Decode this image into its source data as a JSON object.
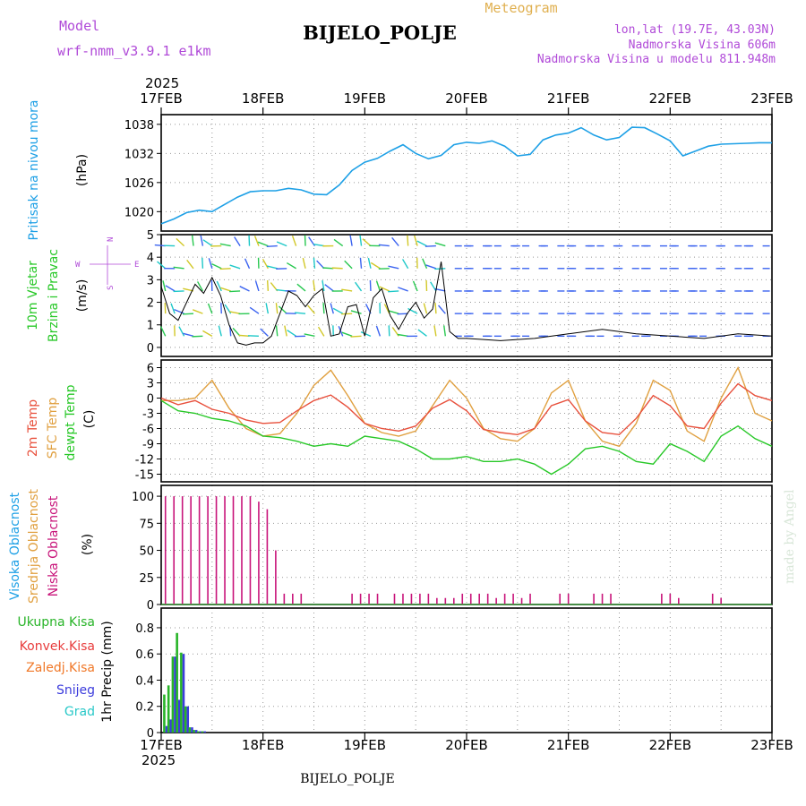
{
  "header": {
    "model_label": "Model",
    "model_name": "wrf-nmm_v3.9.1  e1km",
    "station": "BIJELO_POLJE",
    "meteogram": "Meteogram",
    "lonlat": "lon,lat (19.7E, 43.03N)",
    "elevation": "Nadmorska Visina 606m",
    "model_elevation": "Nadmorska Visina u modelu 811.948m"
  },
  "footer": {
    "station": "BIJELO_POLJE",
    "year": "2025",
    "credit": "made by Angel"
  },
  "time_axis": {
    "year": "2025",
    "ticks": [
      "17FEB",
      "18FEB",
      "19FEB",
      "20FEB",
      "21FEB",
      "22FEB",
      "23FEB"
    ],
    "range_hours": [
      0,
      144
    ]
  },
  "colors": {
    "pressure": "#1ea0e6",
    "t2m": "#e8503c",
    "tsfc": "#e0a040",
    "dewpt": "#28c828",
    "cloud_low": "#c8147a",
    "rain_total": "#28b428",
    "rain_conv": "#e83c3c",
    "freezing": "#f07828",
    "snow": "#3c3cdc",
    "grad": "#28c8c8",
    "frame": "#000000"
  },
  "chart_data": [
    {
      "type": "line",
      "ylabel": [
        "Pritisak na nivou mora",
        "(hPa)"
      ],
      "yticks": [
        1020,
        1026,
        1032,
        1038
      ],
      "ylim": [
        1016,
        1040
      ],
      "series": [
        {
          "x": [
            0,
            3,
            6,
            9,
            12,
            15,
            18,
            21,
            24,
            27,
            30,
            33,
            36,
            39,
            42,
            45,
            48,
            51,
            54,
            57,
            60,
            63,
            66,
            69,
            72,
            75,
            78,
            81,
            84,
            87,
            90,
            93,
            96,
            99,
            102,
            105,
            108,
            111,
            114,
            117,
            120,
            123,
            126,
            129,
            132,
            135,
            138,
            141,
            144
          ],
          "values": [
            1017.5,
            1018.5,
            1019.8,
            1020.3,
            1020.0,
            1021.5,
            1023.0,
            1024.1,
            1024.3,
            1024.3,
            1024.8,
            1024.5,
            1023.6,
            1023.5,
            1025.5,
            1028.5,
            1030.2,
            1031.0,
            1032.5,
            1033.8,
            1032.0,
            1030.9,
            1031.6,
            1033.8,
            1034.3,
            1034.1,
            1034.6,
            1033.5,
            1031.5,
            1031.8,
            1034.8,
            1035.8,
            1036.2,
            1037.3,
            1035.8,
            1034.8,
            1035.3,
            1037.4,
            1037.3,
            1036.0,
            1034.6,
            1031.5,
            1032.5,
            1033.5,
            1033.9,
            1034.0,
            1034.1,
            1034.2,
            1034.2
          ]
        }
      ]
    },
    {
      "type": "line",
      "ylabel": [
        "10m Vjetar",
        "Brzina i Pravac",
        "(m/s)"
      ],
      "yticks": [
        0,
        1,
        2,
        3,
        4,
        5
      ],
      "ylim": [
        -0.4,
        5
      ],
      "legend": {
        "n": "N",
        "w": "W",
        "e": "E",
        "s": "S"
      },
      "series": [
        {
          "name": "speed",
          "x": [
            0,
            2,
            4,
            6,
            8,
            10,
            12,
            14,
            16,
            18,
            20,
            22,
            24,
            26,
            28,
            30,
            32,
            34,
            36,
            38,
            40,
            42,
            44,
            46,
            48,
            50,
            52,
            54,
            56,
            58,
            60,
            62,
            64,
            66,
            68,
            70,
            72,
            80,
            88,
            96,
            104,
            112,
            120,
            128,
            136,
            144
          ],
          "values": [
            2.7,
            1.5,
            1.2,
            2.0,
            2.8,
            2.4,
            3.1,
            2.3,
            1.0,
            0.2,
            0.1,
            0.2,
            0.2,
            0.5,
            1.5,
            2.5,
            2.3,
            1.8,
            2.3,
            2.6,
            0.5,
            0.6,
            1.8,
            1.9,
            0.5,
            2.2,
            2.6,
            1.4,
            0.8,
            1.5,
            2.0,
            1.3,
            1.7,
            3.8,
            0.7,
            0.4,
            0.4,
            0.3,
            0.4,
            0.6,
            0.8,
            0.6,
            0.5,
            0.4,
            0.6,
            0.5
          ]
        },
        {
          "name": "gust",
          "values": []
        }
      ]
    },
    {
      "type": "line",
      "ylabel": [
        "2m Temp",
        "SFC Temp",
        "dewpt Temp",
        "(C)"
      ],
      "yticks": [
        -15,
        -12,
        -9,
        -6,
        -3,
        0,
        3,
        6
      ],
      "ylim": [
        -16.5,
        7.5
      ],
      "series": [
        {
          "name": "2m Temp",
          "x": [
            0,
            4,
            8,
            12,
            16,
            20,
            24,
            28,
            32,
            36,
            40,
            44,
            48,
            52,
            56,
            60,
            64,
            68,
            72,
            76,
            80,
            84,
            88,
            92,
            96,
            100,
            104,
            108,
            112,
            116,
            120,
            124,
            128,
            132,
            136,
            140,
            144
          ],
          "values": [
            0.0,
            -1.3,
            -0.5,
            -2.2,
            -3.0,
            -4.3,
            -5.0,
            -4.8,
            -2.5,
            -0.5,
            0.6,
            -1.8,
            -5.0,
            -6.0,
            -6.5,
            -5.5,
            -2.0,
            -0.3,
            -2.5,
            -6.2,
            -6.8,
            -7.2,
            -6.0,
            -1.5,
            -0.3,
            -4.5,
            -6.8,
            -7.2,
            -4.0,
            0.5,
            -1.5,
            -5.5,
            -6.0,
            -1.0,
            2.8,
            0.5,
            -0.5
          ]
        },
        {
          "name": "SFC Temp",
          "x": [
            0,
            4,
            8,
            12,
            16,
            20,
            24,
            28,
            32,
            36,
            40,
            44,
            48,
            52,
            56,
            60,
            64,
            68,
            72,
            76,
            80,
            84,
            88,
            92,
            96,
            100,
            104,
            108,
            112,
            116,
            120,
            124,
            128,
            132,
            136,
            140,
            144
          ],
          "values": [
            -0.5,
            -0.5,
            0.0,
            3.5,
            -2.0,
            -6.0,
            -7.5,
            -7.0,
            -3.0,
            2.5,
            5.5,
            0.5,
            -5.0,
            -6.8,
            -7.5,
            -6.5,
            -1.5,
            3.5,
            0.0,
            -6.0,
            -8.0,
            -8.5,
            -6.0,
            1.0,
            3.5,
            -4.5,
            -8.5,
            -9.5,
            -5.0,
            3.5,
            1.5,
            -6.5,
            -8.5,
            0.0,
            6.0,
            -3.0,
            -4.5
          ]
        },
        {
          "name": "dewpt Temp",
          "x": [
            0,
            4,
            8,
            12,
            16,
            20,
            24,
            28,
            32,
            36,
            40,
            44,
            48,
            52,
            56,
            60,
            64,
            68,
            72,
            76,
            80,
            84,
            88,
            92,
            96,
            100,
            104,
            108,
            112,
            116,
            120,
            124,
            128,
            132,
            136,
            140,
            144
          ],
          "values": [
            -0.5,
            -2.5,
            -3.0,
            -4.0,
            -4.5,
            -5.5,
            -7.5,
            -7.8,
            -8.5,
            -9.5,
            -9.0,
            -9.5,
            -7.5,
            -8.0,
            -8.5,
            -10.0,
            -12.0,
            -12.0,
            -11.5,
            -12.5,
            -12.5,
            -12.0,
            -13.0,
            -15.0,
            -13.0,
            -10.0,
            -9.5,
            -10.5,
            -12.5,
            -13.0,
            -9.0,
            -10.5,
            -12.5,
            -7.5,
            -5.5,
            -8.0,
            -9.5
          ]
        }
      ]
    },
    {
      "type": "bar",
      "ylabel": [
        "Visoka Oblacnost",
        "Srednja Oblacnost",
        "Niska Oblacnost",
        "(%)"
      ],
      "yticks": [
        0,
        25,
        50,
        75,
        100
      ],
      "ylim": [
        0,
        110
      ],
      "series": [
        {
          "name": "Niska Oblacnost",
          "x": [
            1,
            3,
            5,
            7,
            9,
            11,
            13,
            15,
            17,
            19,
            21,
            23,
            25,
            27,
            29,
            31,
            33,
            45,
            47,
            49,
            51,
            55,
            57,
            59,
            61,
            63,
            65,
            67,
            69,
            71,
            73,
            75,
            77,
            79,
            81,
            83,
            85,
            87,
            94,
            96,
            102,
            104,
            106,
            118,
            120,
            122,
            130,
            132
          ],
          "values": [
            100,
            100,
            100,
            100,
            100,
            100,
            100,
            100,
            100,
            100,
            100,
            95,
            88,
            50,
            10,
            10,
            10,
            10,
            10,
            10,
            10,
            10,
            10,
            10,
            10,
            10,
            6,
            6,
            6,
            10,
            10,
            10,
            10,
            6,
            10,
            10,
            6,
            10,
            10,
            10,
            10,
            10,
            10,
            10,
            10,
            6,
            10,
            6
          ]
        }
      ]
    },
    {
      "type": "bar",
      "ylabel": [
        "1hr Precip (mm)"
      ],
      "legend": [
        "Ukupna Kisa",
        "Konvek.Kisa",
        "Zaledj.Kisa",
        "Snijeg",
        "Grad"
      ],
      "yticks": [
        0,
        0.2,
        0.4,
        0.6,
        0.8
      ],
      "ylim": [
        0,
        0.95
      ],
      "series": [
        {
          "name": "Ukupna Kisa",
          "x": [
            1,
            2,
            3,
            4,
            5,
            6,
            7,
            8,
            9,
            10
          ],
          "values": [
            0.29,
            0.36,
            0.58,
            0.76,
            0.61,
            0.2,
            0.04,
            0.02,
            0.01,
            0.01
          ]
        },
        {
          "name": "Snijeg",
          "x": [
            1,
            2,
            3,
            4,
            5,
            6,
            7,
            8,
            9,
            10
          ],
          "values": [
            0.05,
            0.1,
            0.58,
            0.25,
            0.6,
            0.2,
            0.04,
            0.02,
            0.01,
            0.01
          ]
        }
      ]
    }
  ]
}
